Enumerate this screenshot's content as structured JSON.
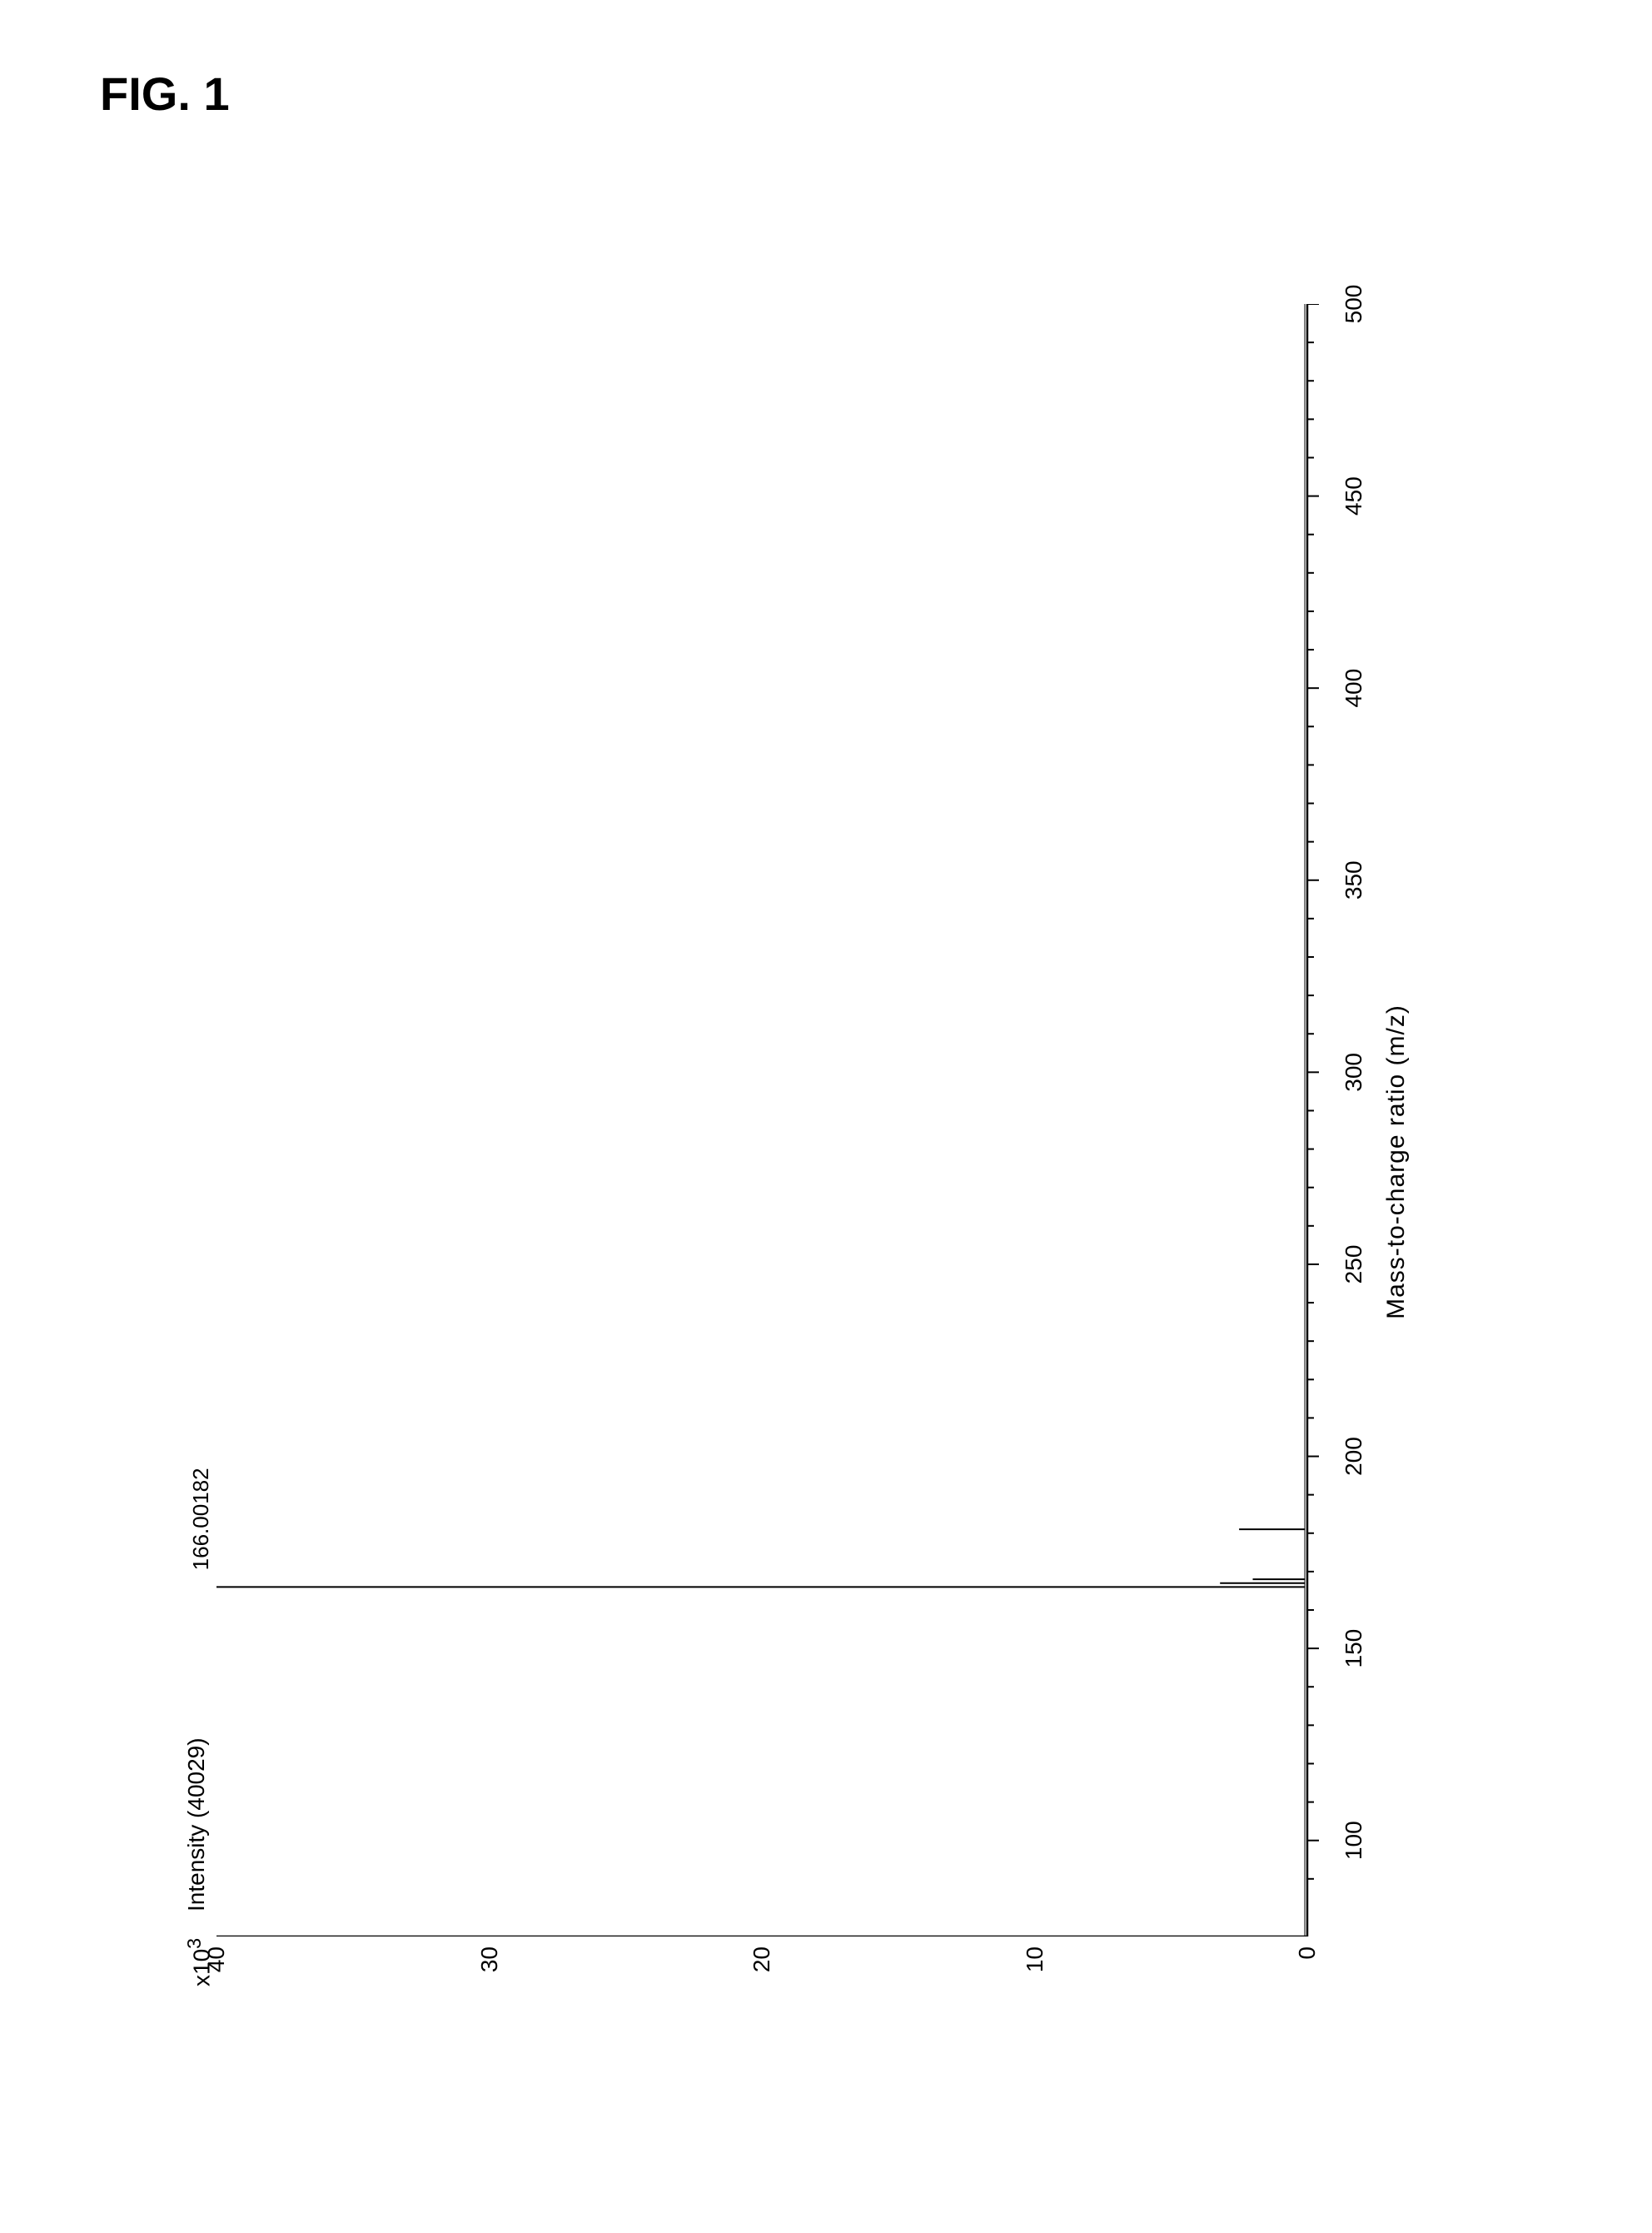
{
  "figure": {
    "label": "FIG. 1"
  },
  "chart": {
    "type": "mass-spectrum",
    "y_multiplier": "x10",
    "y_multiplier_exp": "3",
    "y_title": "Intensity (40029)",
    "x_title": "Mass-to-charge ratio (m/z)",
    "xlim": [
      75,
      500
    ],
    "ylim": [
      0,
      40
    ],
    "x_major_ticks": [
      100,
      150,
      200,
      250,
      300,
      350,
      400,
      450,
      500
    ],
    "x_minor_tick_step": 10,
    "y_major_ticks": [
      0,
      10,
      20,
      30,
      40
    ],
    "y_minor_tick_step": 2,
    "axis_color": "#000000",
    "background_color": "#ffffff",
    "line_color": "#000000",
    "axis_stroke_width": 2.5,
    "tick_stroke_width": 2,
    "major_tick_length": 14,
    "minor_tick_length": 8,
    "peak_stroke_width": 2,
    "peaks": [
      {
        "mz": 166.00182,
        "intensity": 40,
        "label": "166.00182"
      },
      {
        "mz": 167.0,
        "intensity": 3.2
      },
      {
        "mz": 168.0,
        "intensity": 2.0
      },
      {
        "mz": 181.0,
        "intensity": 2.5
      }
    ],
    "peak_label_fontsize": 26,
    "axis_label_fontsize": 30,
    "tick_label_fontsize": 28
  }
}
